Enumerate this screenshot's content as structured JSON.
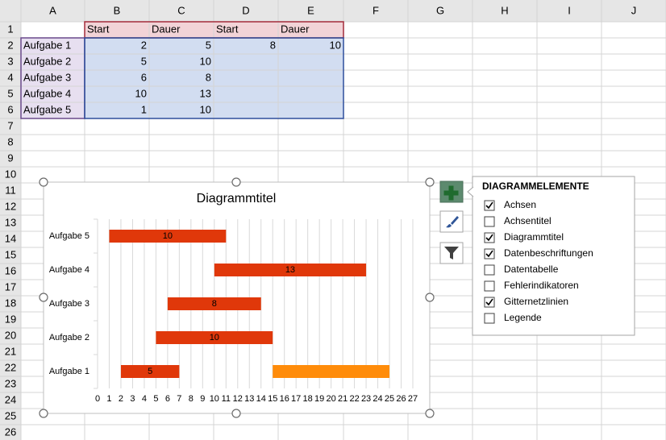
{
  "column_headers": [
    "A",
    "B",
    "C",
    "D",
    "E",
    "F",
    "G",
    "H",
    "I",
    "J"
  ],
  "row_headers": [
    1,
    2,
    3,
    4,
    5,
    6,
    7,
    8,
    9,
    10,
    11,
    12,
    13,
    14,
    15,
    16,
    17,
    18,
    19,
    20,
    21,
    22,
    23,
    24,
    25,
    26
  ],
  "sheet": {
    "rows": [
      [
        null,
        "Start",
        "Dauer",
        "Start",
        "Dauer"
      ],
      [
        "Aufgabe 1",
        2,
        5,
        8,
        10
      ],
      [
        "Aufgabe 2",
        5,
        10,
        null,
        null
      ],
      [
        "Aufgabe 3",
        6,
        8,
        null,
        null
      ],
      [
        "Aufgabe 4",
        10,
        13,
        null,
        null
      ],
      [
        "Aufgabe 5",
        1,
        10,
        null,
        null
      ]
    ]
  },
  "chart_data": {
    "type": "bar",
    "orientation": "horizontal",
    "stacked": true,
    "title": "Diagrammtitel",
    "categories": [
      "Aufgabe 1",
      "Aufgabe 2",
      "Aufgabe 3",
      "Aufgabe 4",
      "Aufgabe 5"
    ],
    "series": [
      {
        "color": null,
        "values": [
          2,
          5,
          6,
          10,
          1
        ]
      },
      {
        "color": "#e0380a",
        "values": [
          5,
          10,
          8,
          13,
          10
        ],
        "data_labels": true
      },
      {
        "color": null,
        "values": [
          8,
          null,
          null,
          null,
          null
        ]
      },
      {
        "color": "#ff8c0a",
        "values": [
          10,
          null,
          null,
          null,
          null
        ]
      }
    ],
    "xlim": [
      0,
      27
    ],
    "xticks": [
      0,
      1,
      2,
      3,
      4,
      5,
      6,
      7,
      8,
      9,
      10,
      11,
      12,
      13,
      14,
      15,
      16,
      17,
      18,
      19,
      20,
      21,
      22,
      23,
      24,
      25,
      26,
      27
    ],
    "grid": true
  },
  "panel": {
    "title": "DIAGRAMMELEMENTE",
    "items": [
      {
        "label": "Achsen",
        "checked": true
      },
      {
        "label": "Achsentitel",
        "checked": false
      },
      {
        "label": "Diagrammtitel",
        "checked": true
      },
      {
        "label": "Datenbeschriftungen",
        "checked": true
      },
      {
        "label": "Datentabelle",
        "checked": false
      },
      {
        "label": "Fehlerindikatoren",
        "checked": false
      },
      {
        "label": "Gitternetzlinien",
        "checked": true
      },
      {
        "label": "Legende",
        "checked": false
      }
    ]
  }
}
